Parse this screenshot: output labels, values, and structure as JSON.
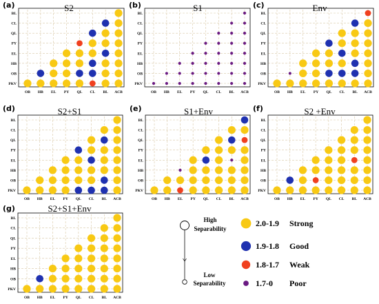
{
  "colors": {
    "strong": "#f8c914",
    "good": "#1f31b0",
    "weak": "#f0401f",
    "poor": "#6a1a82"
  },
  "categories": [
    "OB",
    "HB",
    "EL",
    "PY",
    "QL",
    "CL",
    "BL",
    "ACB"
  ],
  "y_categories": [
    "PKV",
    "OB",
    "HB",
    "EL",
    "PY",
    "QL",
    "CL",
    "BL"
  ],
  "legend": {
    "high_label_1": "High",
    "high_label_2": "Separability",
    "low_label_1": "Low",
    "low_label_2": "Separability",
    "items": [
      {
        "range": "2.0-1.9",
        "label": "Strong",
        "class": "strong"
      },
      {
        "range": "1.9-1.8",
        "label": "Good",
        "class": "good"
      },
      {
        "range": "1.8-1.7",
        "label": "Weak",
        "class": "weak"
      },
      {
        "range": "1.7-0",
        "label": "Poor",
        "class": "poor"
      }
    ]
  },
  "chart_data": [
    {
      "type": "heatmap",
      "panel": "(a)",
      "title": "S2",
      "matrix": [
        [
          "S",
          "S",
          "S",
          "S",
          "S",
          "W",
          "S",
          "S"
        ],
        [
          "",
          "B",
          "S",
          "S",
          "B",
          "B",
          "S",
          "S"
        ],
        [
          "",
          "",
          "S",
          "S",
          "S",
          "B",
          "S",
          "S"
        ],
        [
          "",
          "",
          "",
          "S",
          "S",
          "S",
          "B",
          "S"
        ],
        [
          "",
          "",
          "",
          "",
          "W",
          "S",
          "S",
          "S"
        ],
        [
          "",
          "",
          "",
          "",
          "",
          "B",
          "S",
          "S"
        ],
        [
          "",
          "",
          "",
          "",
          "",
          "",
          "B",
          "S"
        ],
        [
          "",
          "",
          "",
          "",
          "",
          "",
          "",
          "S"
        ]
      ]
    },
    {
      "type": "heatmap",
      "panel": "(b)",
      "title": "S1",
      "matrix": [
        [
          "P",
          "P",
          "P",
          "P",
          "P",
          "P",
          "P",
          "P"
        ],
        [
          "",
          "P",
          "P",
          "P",
          "P",
          "P",
          "P",
          "P"
        ],
        [
          "",
          "",
          "P",
          "P",
          "P",
          "P",
          "P",
          "P"
        ],
        [
          "",
          "",
          "",
          "P",
          "P",
          "P",
          "P",
          "P"
        ],
        [
          "",
          "",
          "",
          "",
          "P",
          "P",
          "P",
          "P"
        ],
        [
          "",
          "",
          "",
          "",
          "",
          "P",
          "P",
          "P"
        ],
        [
          "",
          "",
          "",
          "",
          "",
          "",
          "P",
          "P"
        ],
        [
          "",
          "",
          "",
          "",
          "",
          "",
          "",
          "P"
        ]
      ]
    },
    {
      "type": "heatmap",
      "panel": "(c)",
      "title": "Env",
      "matrix": [
        [
          "S",
          "S",
          "S",
          "S",
          "S",
          "S",
          "S",
          "S"
        ],
        [
          "",
          "P",
          "S",
          "S",
          "B",
          "B",
          "B",
          "S"
        ],
        [
          "",
          "",
          "S",
          "S",
          "S",
          "S",
          "B",
          "S"
        ],
        [
          "",
          "",
          "",
          "S",
          "S",
          "B",
          "S",
          "S"
        ],
        [
          "",
          "",
          "",
          "",
          "B",
          "S",
          "S",
          "S"
        ],
        [
          "",
          "",
          "",
          "",
          "",
          "S",
          "S",
          "S"
        ],
        [
          "",
          "",
          "",
          "",
          "",
          "",
          "B",
          "S"
        ],
        [
          "",
          "",
          "",
          "",
          "",
          "",
          "",
          "W"
        ]
      ]
    },
    {
      "type": "heatmap",
      "panel": "(d)",
      "title": "S2+S1",
      "matrix": [
        [
          "S",
          "S",
          "S",
          "S",
          "B",
          "B",
          "B",
          "S"
        ],
        [
          "",
          "S",
          "S",
          "S",
          "S",
          "S",
          "B",
          "S"
        ],
        [
          "",
          "",
          "S",
          "S",
          "S",
          "S",
          "S",
          "S"
        ],
        [
          "",
          "",
          "",
          "S",
          "S",
          "B",
          "S",
          "S"
        ],
        [
          "",
          "",
          "",
          "",
          "B",
          "S",
          "S",
          "S"
        ],
        [
          "",
          "",
          "",
          "",
          "",
          "S",
          "B",
          "S"
        ],
        [
          "",
          "",
          "",
          "",
          "",
          "",
          "S",
          "S"
        ],
        [
          "",
          "",
          "",
          "",
          "",
          "",
          "",
          "S"
        ]
      ]
    },
    {
      "type": "heatmap",
      "panel": "(e)",
      "title": "S1+Env",
      "matrix": [
        [
          "S",
          "S",
          "W",
          "S",
          "S",
          "S",
          "S",
          "S"
        ],
        [
          "",
          "S",
          "S",
          "S",
          "S",
          "S",
          "S",
          "S"
        ],
        [
          "",
          "",
          "P",
          "S",
          "S",
          "S",
          "S",
          "S"
        ],
        [
          "",
          "",
          "",
          "S",
          "B",
          "S",
          "P",
          "S"
        ],
        [
          "",
          "",
          "",
          "",
          "S",
          "S",
          "S",
          "S"
        ],
        [
          "",
          "",
          "",
          "",
          "",
          "S",
          "B",
          "W"
        ],
        [
          "",
          "",
          "",
          "",
          "",
          "",
          "S",
          "S"
        ],
        [
          "",
          "",
          "",
          "",
          "",
          "",
          "",
          "B"
        ]
      ]
    },
    {
      "type": "heatmap",
      "panel": "(f)",
      "title": "S2 +Env",
      "matrix": [
        [
          "S",
          "S",
          "S",
          "S",
          "S",
          "S",
          "S",
          "S"
        ],
        [
          "",
          "B",
          "S",
          "W",
          "S",
          "S",
          "S",
          "S"
        ],
        [
          "",
          "",
          "S",
          "S",
          "S",
          "S",
          "S",
          "S"
        ],
        [
          "",
          "",
          "",
          "S",
          "S",
          "S",
          "W",
          "S"
        ],
        [
          "",
          "",
          "",
          "",
          "S",
          "S",
          "S",
          "S"
        ],
        [
          "",
          "",
          "",
          "",
          "",
          "S",
          "S",
          "S"
        ],
        [
          "",
          "",
          "",
          "",
          "",
          "",
          "S",
          "S"
        ],
        [
          "",
          "",
          "",
          "",
          "",
          "",
          "",
          "S"
        ]
      ]
    },
    {
      "type": "heatmap",
      "panel": "(g)",
      "title": "S2+S1+Env",
      "matrix": [
        [
          "S",
          "S",
          "S",
          "S",
          "S",
          "S",
          "S",
          "S"
        ],
        [
          "",
          "B",
          "S",
          "S",
          "S",
          "S",
          "S",
          "S"
        ],
        [
          "",
          "",
          "S",
          "S",
          "S",
          "S",
          "S",
          "S"
        ],
        [
          "",
          "",
          "",
          "S",
          "S",
          "S",
          "S",
          "S"
        ],
        [
          "",
          "",
          "",
          "",
          "S",
          "S",
          "S",
          "S"
        ],
        [
          "",
          "",
          "",
          "",
          "",
          "S",
          "S",
          "S"
        ],
        [
          "",
          "",
          "",
          "",
          "",
          "",
          "S",
          "S"
        ],
        [
          "",
          "",
          "",
          "",
          "",
          "",
          "",
          "S"
        ]
      ]
    }
  ]
}
